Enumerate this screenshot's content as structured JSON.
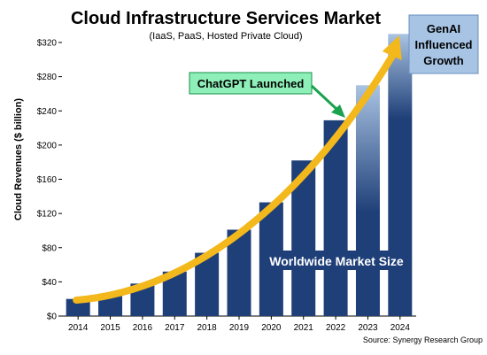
{
  "chart_data": {
    "type": "bar",
    "title": "Cloud Infrastructure Services Market",
    "subtitle": "(IaaS, PaaS, Hosted Private Cloud)",
    "xlabel": "",
    "ylabel": "Cloud Revenues ($ billion)",
    "categories": [
      "2014",
      "2015",
      "2016",
      "2017",
      "2018",
      "2019",
      "2020",
      "2021",
      "2022",
      "2023",
      "2024"
    ],
    "values": [
      20,
      26,
      38,
      52,
      74,
      101,
      133,
      182,
      229,
      270,
      330
    ],
    "ylim": [
      0,
      320
    ],
    "yticks": [
      0,
      40,
      80,
      120,
      160,
      200,
      240,
      280,
      320
    ],
    "ytick_labels": [
      "$0",
      "$40",
      "$80",
      "$120",
      "$160",
      "$200",
      "$240",
      "$280",
      "$320"
    ],
    "grid": false,
    "colors": {
      "bar": "#1f3f78",
      "bar_fade": "#a9c3e2",
      "arrow": "#f2b81c",
      "callout_fill": "#8ef0b8",
      "callout_border": "#1a8f4a",
      "pointer": "#1aa24e",
      "genai_fill": "#a7c4e5"
    },
    "annotations": {
      "chatgpt": "ChatGPT Launched",
      "genai_line1": "GenAI",
      "genai_line2": "Influenced",
      "genai_line3": "Growth",
      "market_size": "Worldwide Market Size"
    },
    "source": "Source: Synergy Research Group"
  }
}
